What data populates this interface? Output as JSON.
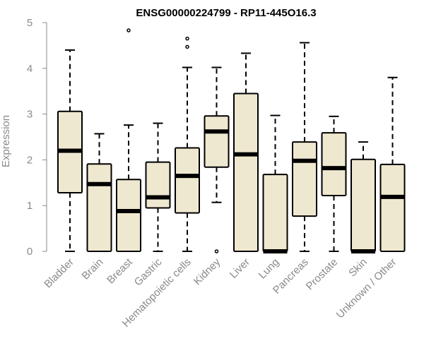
{
  "chart_data": {
    "type": "box",
    "title": "ENSG00000224799 - RP11-445O16.3",
    "xlabel": "",
    "ylabel": "Expression",
    "ylim": [
      0,
      5
    ],
    "yticks": [
      0,
      1,
      2,
      3,
      4,
      5
    ],
    "grid": false,
    "box_fill": "#efe8d0",
    "box_stroke": "#000000",
    "axis_color": "#8a8a8a",
    "categories": [
      "Bladder",
      "Brain",
      "Breast",
      "Gastric",
      "Hematopoietic cells",
      "Kidney",
      "Liver",
      "Lung",
      "Pancreas",
      "Prostate",
      "Skin",
      "Unknown / Other"
    ],
    "boxes": [
      {
        "category": "Bladder",
        "whisker_low": 0,
        "q1": 1.28,
        "median": 2.2,
        "q3": 3.06,
        "whisker_high": 4.4,
        "outliers": []
      },
      {
        "category": "Brain",
        "whisker_low": 0,
        "q1": 0,
        "median": 1.47,
        "q3": 1.91,
        "whisker_high": 2.57,
        "outliers": []
      },
      {
        "category": "Breast",
        "whisker_low": 0,
        "q1": 0,
        "median": 0.88,
        "q3": 1.57,
        "whisker_high": 2.76,
        "outliers": [
          4.83
        ]
      },
      {
        "category": "Gastric",
        "whisker_low": 0,
        "q1": 0.95,
        "median": 1.18,
        "q3": 1.95,
        "whisker_high": 2.8,
        "outliers": []
      },
      {
        "category": "Hematopoietic cells",
        "whisker_low": 0,
        "q1": 0.84,
        "median": 1.65,
        "q3": 2.26,
        "whisker_high": 4.02,
        "outliers": [
          4.47,
          4.65
        ]
      },
      {
        "category": "Kidney",
        "whisker_low": 1.07,
        "q1": 1.84,
        "median": 2.62,
        "q3": 2.96,
        "whisker_high": 4.02,
        "outliers": [
          0
        ]
      },
      {
        "category": "Liver",
        "whisker_low": 0,
        "q1": 0,
        "median": 2.12,
        "q3": 3.45,
        "whisker_high": 4.33,
        "outliers": []
      },
      {
        "category": "Lung",
        "whisker_low": 0,
        "q1": 0,
        "median": 0,
        "q3": 1.68,
        "whisker_high": 2.97,
        "outliers": []
      },
      {
        "category": "Pancreas",
        "whisker_low": 0,
        "q1": 0.77,
        "median": 1.98,
        "q3": 2.39,
        "whisker_high": 4.56,
        "outliers": []
      },
      {
        "category": "Prostate",
        "whisker_low": 0,
        "q1": 1.22,
        "median": 1.82,
        "q3": 2.59,
        "whisker_high": 2.95,
        "outliers": []
      },
      {
        "category": "Skin",
        "whisker_low": 0,
        "q1": 0,
        "median": 0,
        "q3": 2.01,
        "whisker_high": 2.39,
        "outliers": []
      },
      {
        "category": "Unknown / Other",
        "whisker_low": 0,
        "q1": 0,
        "median": 1.19,
        "q3": 1.9,
        "whisker_high": 3.8,
        "outliers": []
      }
    ]
  }
}
